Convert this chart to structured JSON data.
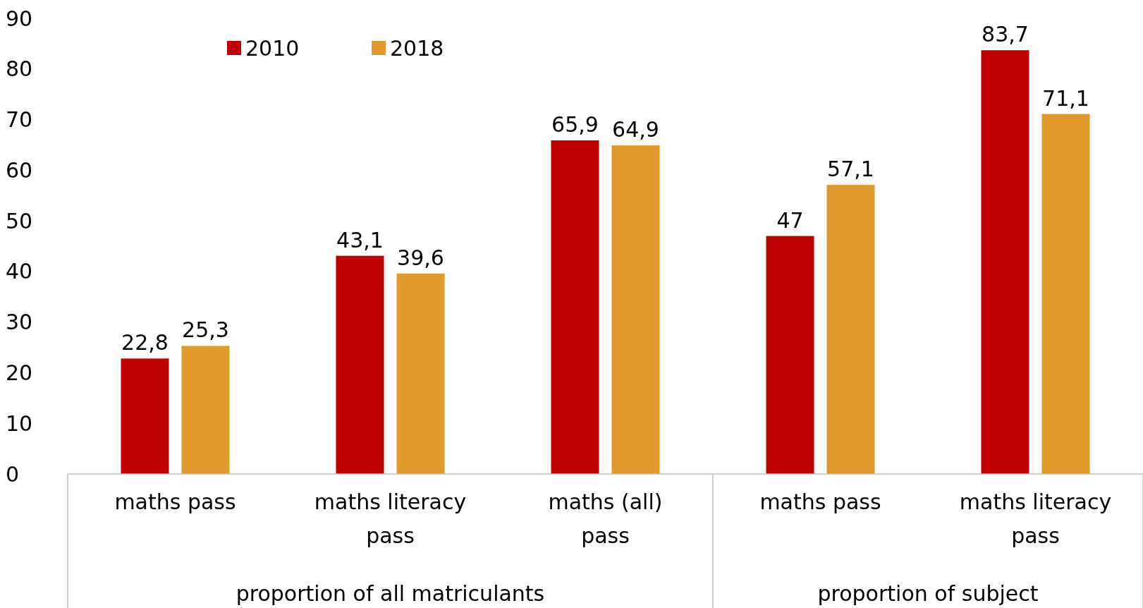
{
  "chart_data": {
    "type": "bar",
    "categories": [
      "maths pass",
      "maths literacy pass",
      "maths (all) pass",
      "maths pass",
      "maths literacy pass"
    ],
    "series": [
      {
        "name": "2010",
        "color": "#c00000",
        "values": [
          22.8,
          43.1,
          65.9,
          47,
          83.7
        ],
        "value_labels": [
          "22,8",
          "43,1",
          "65,9",
          "47",
          "83,7"
        ]
      },
      {
        "name": "2018",
        "color": "#e0992a",
        "values": [
          25.3,
          39.6,
          64.9,
          57.1,
          71.1
        ],
        "value_labels": [
          "25,3",
          "39,6",
          "64,9",
          "57,1",
          "71,1"
        ]
      }
    ],
    "ylim": [
      0,
      90
    ],
    "yticks": [
      0,
      10,
      20,
      30,
      40,
      50,
      60,
      70,
      80,
      90
    ],
    "annotations": [
      "proportion of all matriculants",
      "proportion of subject"
    ],
    "grid": false,
    "legend": "top left"
  }
}
